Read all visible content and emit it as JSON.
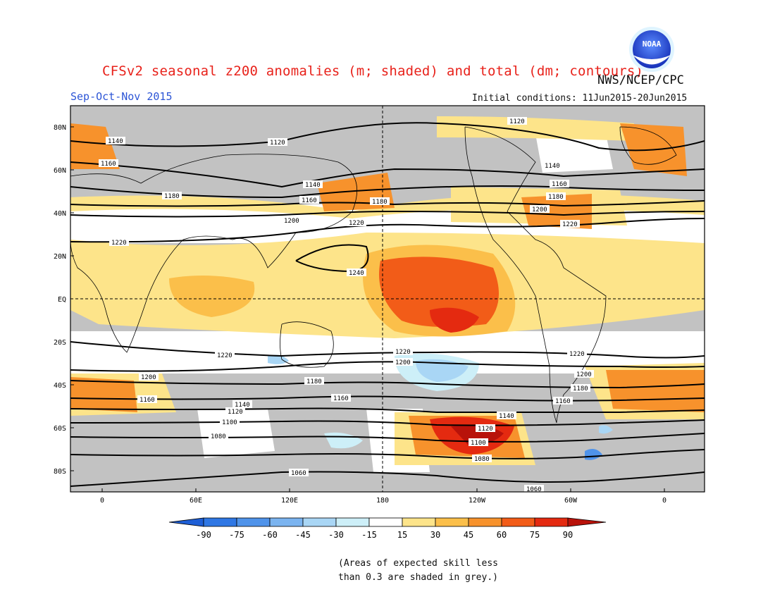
{
  "header": {
    "title": "CFSv2 seasonal z200 anomalies (m; shaded) and total (dm; contours)",
    "agency": "NWS/NCEP/CPC",
    "season": "Sep-Oct-Nov 2015",
    "initial_conditions": "Initial conditions: 11Jun2015-20Jun2015",
    "logo_text": "NOAA"
  },
  "map": {
    "lat_labels": [
      "80N",
      "60N",
      "40N",
      "20N",
      "EQ",
      "20S",
      "40S",
      "60S",
      "80S"
    ],
    "lon_labels": [
      "0",
      "60E",
      "120E",
      "180",
      "120W",
      "60W",
      "0"
    ],
    "contour_labels": [
      "1120",
      "1140",
      "1160",
      "1180",
      "1200",
      "1220",
      "1240",
      "1060",
      "1080",
      "1100"
    ]
  },
  "colorbar": {
    "ticks": [
      "-90",
      "-75",
      "-60",
      "-45",
      "-30",
      "-15",
      "15",
      "30",
      "45",
      "60",
      "75",
      "90"
    ],
    "colors": [
      "#1e5fd6",
      "#2f77e4",
      "#4f93ea",
      "#7bb4f0",
      "#a9d6f5",
      "#cdeff8",
      "#ffffff",
      "#fde48a",
      "#fbbf4a",
      "#f7922c",
      "#f25c18",
      "#e42a10",
      "#b8120a"
    ]
  },
  "footnote": {
    "line1": "(Areas of expected skill less",
    "line2": "than 0.3 are shaded in grey.)"
  }
}
